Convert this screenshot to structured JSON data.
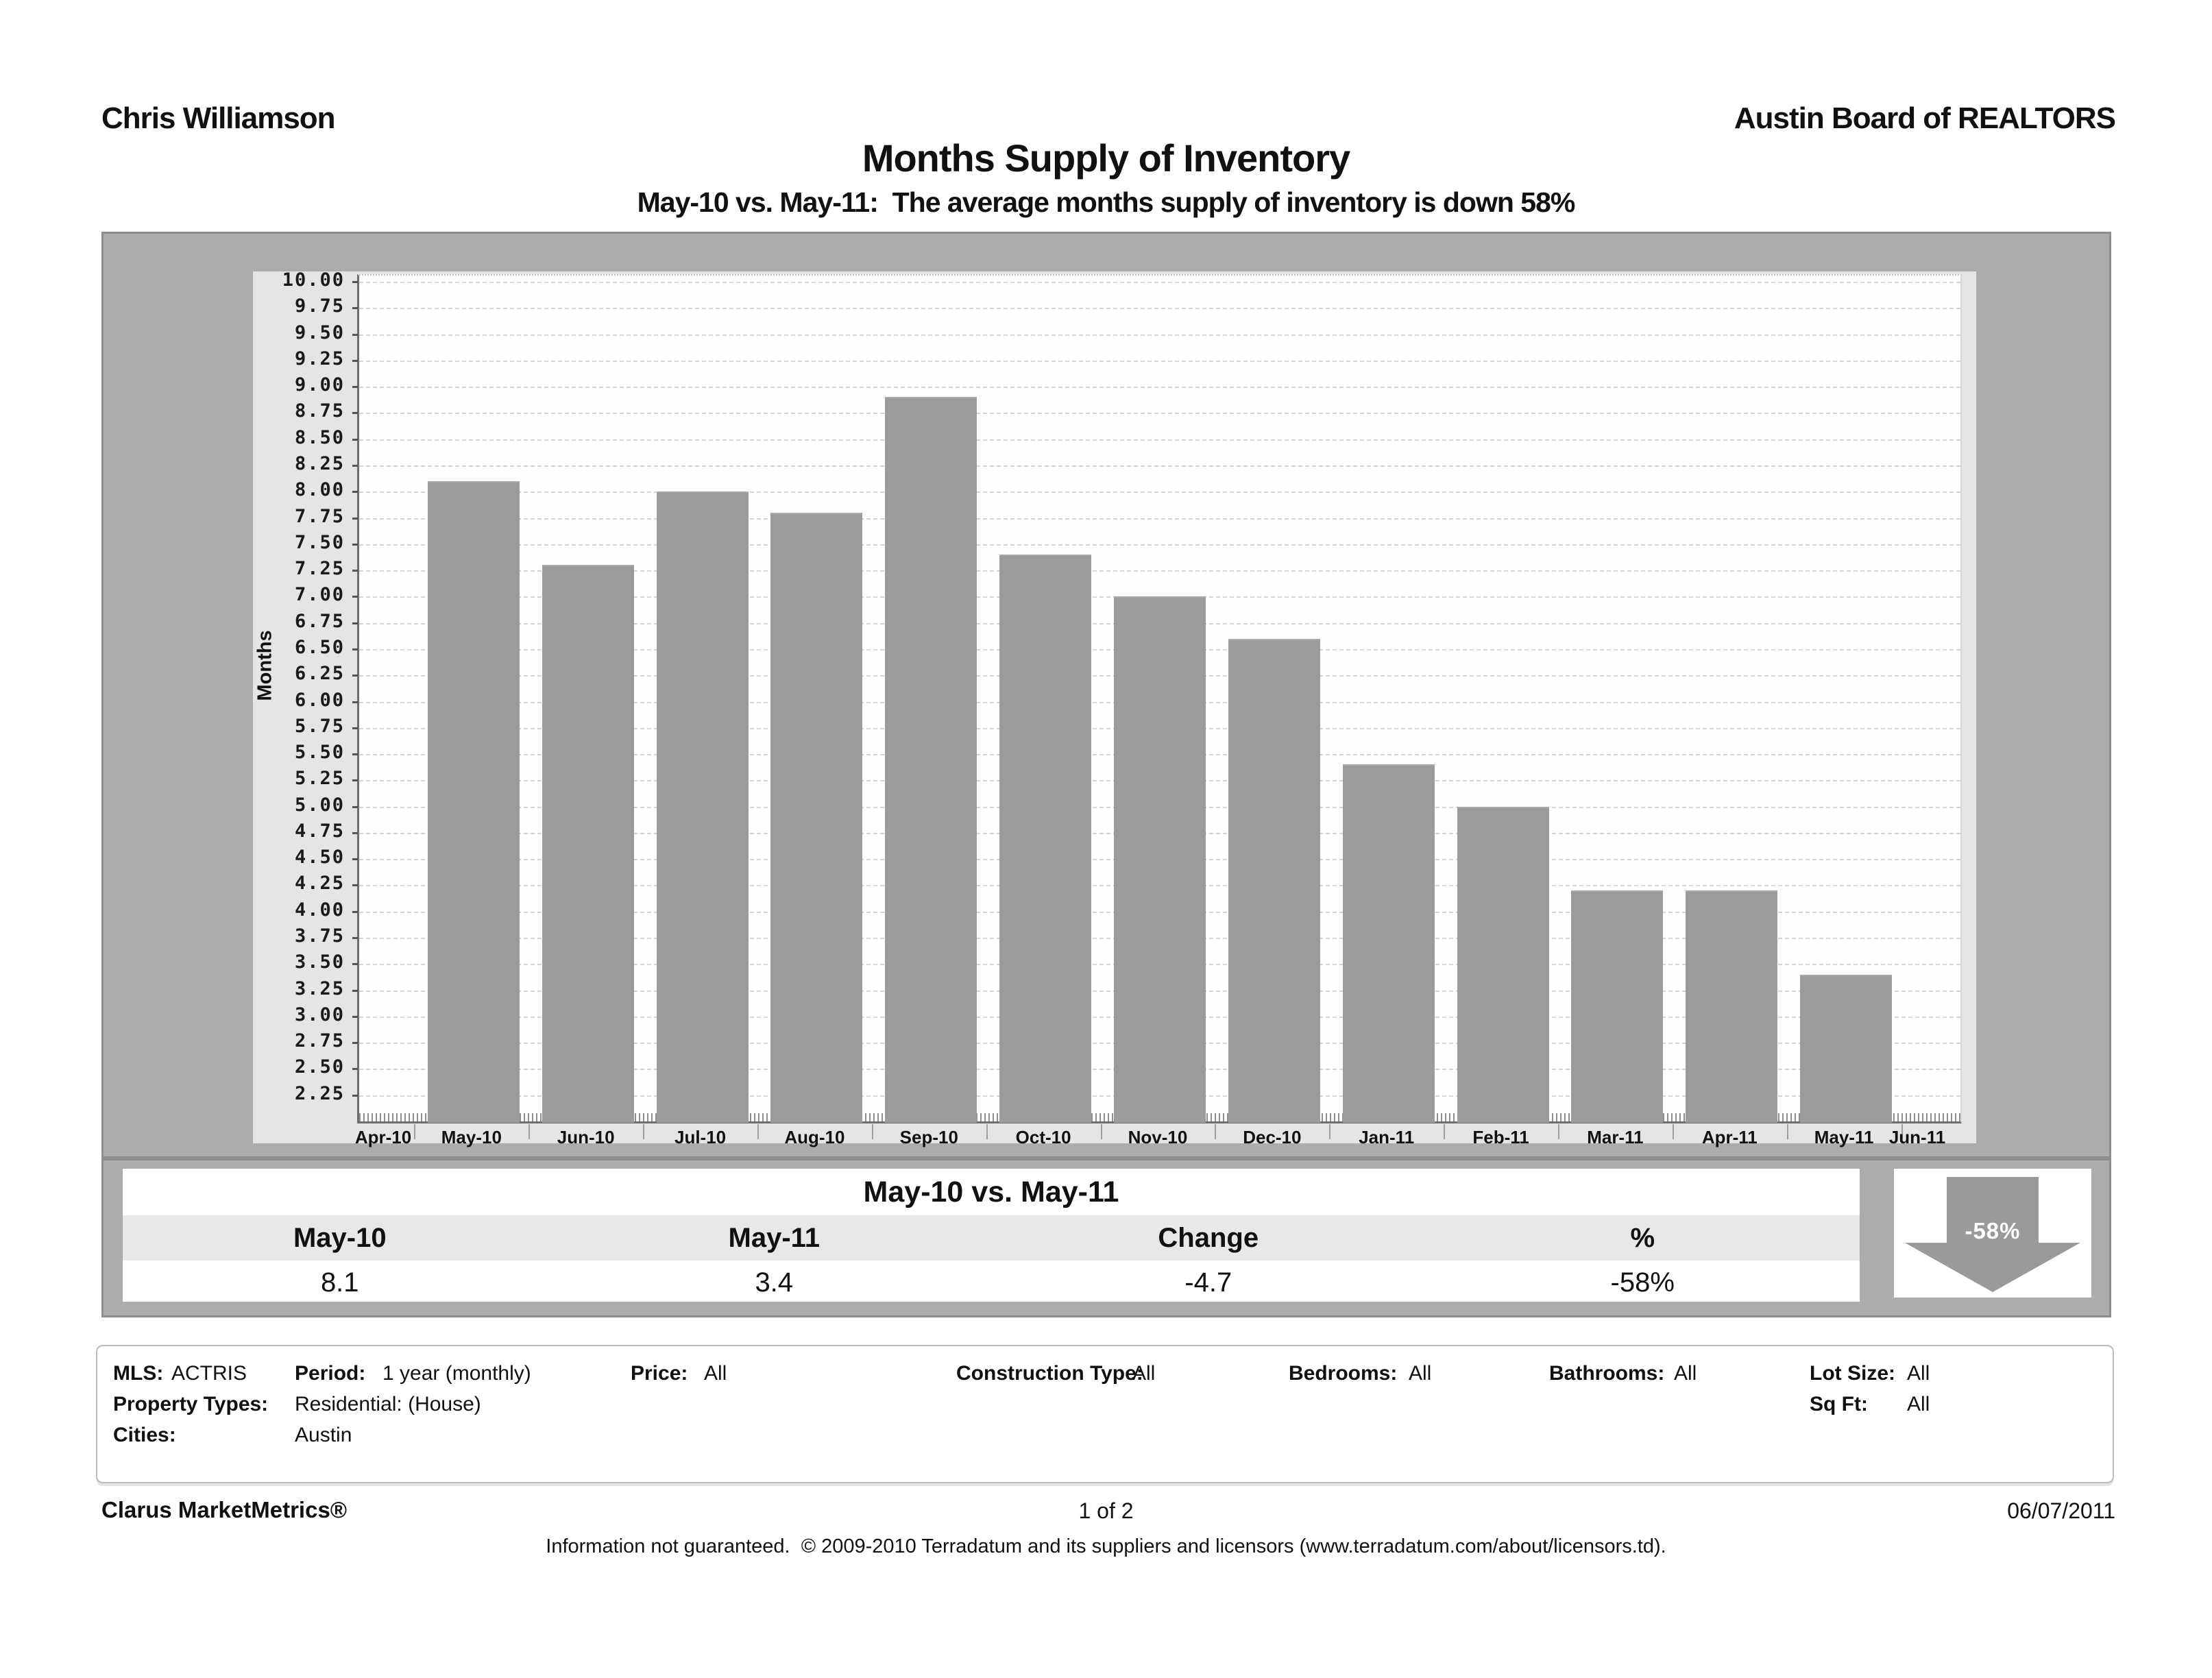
{
  "header": {
    "agent": "Chris Williamson",
    "organization": "Austin Board of REALTORS"
  },
  "chart_data": {
    "type": "bar",
    "title": "Months Supply of Inventory",
    "subtitle": "May-10 vs. May-11:  The average months supply of inventory is down 58%",
    "xlabel": "",
    "ylabel": "Months",
    "categories": [
      "Apr-10",
      "May-10",
      "Jun-10",
      "Jul-10",
      "Aug-10",
      "Sep-10",
      "Oct-10",
      "Nov-10",
      "Dec-10",
      "Jan-11",
      "Feb-11",
      "Mar-11",
      "Apr-11",
      "May-11",
      "Jun-11"
    ],
    "values": [
      null,
      8.1,
      7.3,
      8.0,
      7.8,
      8.9,
      7.4,
      7.0,
      6.6,
      5.4,
      5.0,
      4.2,
      4.2,
      3.4,
      null
    ],
    "ylim": [
      2.0,
      10.0
    ],
    "y_tick_step": 0.25,
    "y_ticks": [
      10.0,
      9.75,
      9.5,
      9.25,
      9.0,
      8.75,
      8.5,
      8.25,
      8.0,
      7.75,
      7.5,
      7.25,
      7.0,
      6.75,
      6.5,
      6.25,
      6.0,
      5.75,
      5.5,
      5.25,
      5.0,
      4.75,
      4.5,
      4.25,
      4.0,
      3.75,
      3.5,
      3.25,
      3.0,
      2.75,
      2.5,
      2.25
    ],
    "grid": "horizontal dashed every 0.25",
    "legend": "none",
    "bar_color": "#9b9b9b"
  },
  "summary": {
    "title": "May-10 vs. May-11",
    "columns": [
      "May-10",
      "May-11",
      "Change",
      "%"
    ],
    "values": [
      "8.1",
      "3.4",
      "-4.7",
      "-58%"
    ],
    "arrow_label": "-58%"
  },
  "filters": {
    "mls_label": "MLS:",
    "mls": "ACTRIS",
    "period_label": "Period:",
    "period": "1 year (monthly)",
    "price_label": "Price:",
    "price": "All",
    "construction_label": "Construction Type:",
    "construction": "All",
    "bedrooms_label": "Bedrooms:",
    "bedrooms": "All",
    "bathrooms_label": "Bathrooms:",
    "bathrooms": "All",
    "lot_label": "Lot Size:",
    "lot": "All",
    "sqft_label": "Sq Ft:",
    "sqft": "All",
    "property_label": "Property Types:",
    "property": "Residential: (House)",
    "cities_label": "Cities:",
    "cities": "Austin"
  },
  "footer": {
    "brand": "Clarus MarketMetrics®",
    "page": "1 of 2",
    "date": "06/07/2011",
    "disclaimer": "Information not guaranteed.  © 2009-2010 Terradatum and its suppliers and licensors (www.terradatum.com/about/licensors.td)."
  }
}
